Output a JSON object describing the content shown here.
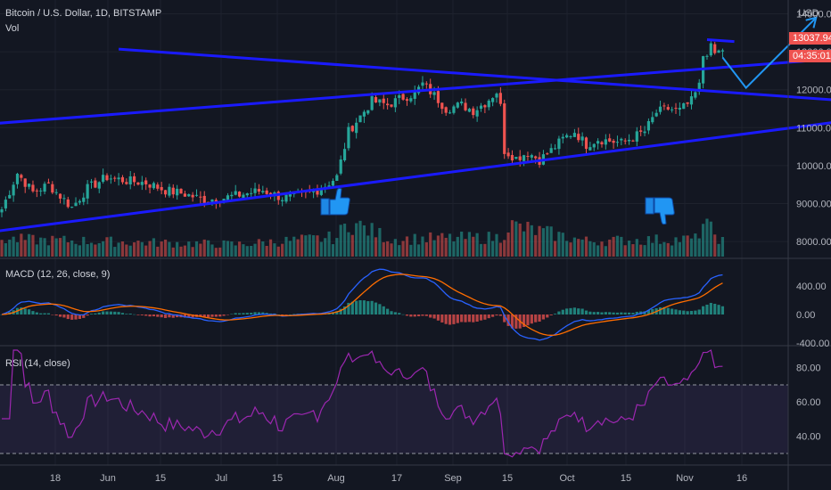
{
  "header": {
    "symbol": "Bitcoin / U.S. Dollar, 1D, BITSTAMP",
    "volume": "Vol",
    "macd": "MACD (12, 26, close, 9)",
    "rsi": "RSI (14, close)",
    "currency": "USD"
  },
  "price_tags": {
    "last_price": "13037.94",
    "countdown": "04:35:01"
  },
  "colors": {
    "background": "#131722",
    "up": "#26a69a",
    "down": "#ef5350",
    "trendline": "#1a1aff",
    "projection": "#2196f3",
    "macd_line": "#2962ff",
    "signal_line": "#ff6d00",
    "rsi_line": "#9c27b0",
    "rsi_band": "#7e57c2"
  },
  "chart_data": {
    "type": "candlestick",
    "x_ticks": [
      "18",
      "Jun",
      "15",
      "Jul",
      "15",
      "Aug",
      "17",
      "Sep",
      "15",
      "Oct",
      "15",
      "Nov",
      "16"
    ],
    "price_axis": {
      "ticks": [
        "8000.00",
        "9000.00",
        "10000.00",
        "11000.00",
        "12000.00",
        "13000.00",
        "14000.00"
      ],
      "ylim": [
        7650,
        14200
      ]
    },
    "macd_axis": {
      "ticks": [
        "-400.00",
        "0.00",
        "400.00"
      ]
    },
    "rsi_axis": {
      "ticks": [
        "40.00",
        "60.00",
        "80.00"
      ],
      "band": [
        30,
        70
      ]
    },
    "close_anchors": [
      {
        "i": 0,
        "v": 8850
      },
      {
        "i": 4,
        "v": 9800
      },
      {
        "i": 8,
        "v": 9300
      },
      {
        "i": 12,
        "v": 9500
      },
      {
        "i": 18,
        "v": 8900
      },
      {
        "i": 22,
        "v": 9400
      },
      {
        "i": 27,
        "v": 9700
      },
      {
        "i": 32,
        "v": 9600
      },
      {
        "i": 37,
        "v": 9550
      },
      {
        "i": 42,
        "v": 9350
      },
      {
        "i": 47,
        "v": 9250
      },
      {
        "i": 52,
        "v": 9100
      },
      {
        "i": 57,
        "v": 9150
      },
      {
        "i": 62,
        "v": 9250
      },
      {
        "i": 67,
        "v": 9350
      },
      {
        "i": 72,
        "v": 9150
      },
      {
        "i": 77,
        "v": 9200
      },
      {
        "i": 82,
        "v": 9400
      },
      {
        "i": 86,
        "v": 9700
      },
      {
        "i": 89,
        "v": 10900
      },
      {
        "i": 92,
        "v": 11300
      },
      {
        "i": 95,
        "v": 11700
      },
      {
        "i": 99,
        "v": 11600
      },
      {
        "i": 103,
        "v": 11800
      },
      {
        "i": 106,
        "v": 11900
      },
      {
        "i": 108,
        "v": 12150
      },
      {
        "i": 111,
        "v": 11850
      },
      {
        "i": 114,
        "v": 11500
      },
      {
        "i": 118,
        "v": 11600
      },
      {
        "i": 121,
        "v": 11450
      },
      {
        "i": 124,
        "v": 11650
      },
      {
        "i": 127,
        "v": 11950
      },
      {
        "i": 128,
        "v": 11550
      },
      {
        "i": 129,
        "v": 10400
      },
      {
        "i": 132,
        "v": 10200
      },
      {
        "i": 135,
        "v": 10350
      },
      {
        "i": 138,
        "v": 10150
      },
      {
        "i": 141,
        "v": 10400
      },
      {
        "i": 144,
        "v": 10700
      },
      {
        "i": 147,
        "v": 10900
      },
      {
        "i": 150,
        "v": 10550
      },
      {
        "i": 153,
        "v": 10700
      },
      {
        "i": 156,
        "v": 10650
      },
      {
        "i": 159,
        "v": 10600
      },
      {
        "i": 162,
        "v": 10750
      },
      {
        "i": 165,
        "v": 10900
      },
      {
        "i": 168,
        "v": 11400
      },
      {
        "i": 171,
        "v": 11500
      },
      {
        "i": 174,
        "v": 11450
      },
      {
        "i": 177,
        "v": 11700
      },
      {
        "i": 179,
        "v": 12100
      },
      {
        "i": 180,
        "v": 12900
      },
      {
        "i": 182,
        "v": 13100
      },
      {
        "i": 183,
        "v": 12950
      },
      {
        "i": 185,
        "v": 13037.94
      }
    ],
    "volume_anchors": [
      {
        "i": 0,
        "v": 0.5
      },
      {
        "i": 20,
        "v": 0.45
      },
      {
        "i": 40,
        "v": 0.4
      },
      {
        "i": 60,
        "v": 0.35
      },
      {
        "i": 86,
        "v": 0.55
      },
      {
        "i": 89,
        "v": 1.0
      },
      {
        "i": 100,
        "v": 0.5
      },
      {
        "i": 128,
        "v": 0.55
      },
      {
        "i": 130,
        "v": 0.9
      },
      {
        "i": 150,
        "v": 0.45
      },
      {
        "i": 178,
        "v": 0.5
      },
      {
        "i": 180,
        "v": 0.95
      },
      {
        "i": 185,
        "v": 0.45
      }
    ],
    "projection": [
      {
        "i": 185,
        "v": 12850
      },
      {
        "i": 191,
        "v": 12050
      },
      {
        "i": 209,
        "v": 13900
      }
    ],
    "trendlines": [
      {
        "from": {
          "i": -3,
          "v": 8250
        },
        "to": {
          "i": 218,
          "v": 11200
        }
      },
      {
        "from": {
          "i": -3,
          "v": 11100
        },
        "to": {
          "i": 218,
          "v": 12850
        }
      },
      {
        "from": {
          "i": 30,
          "v": 13070
        },
        "to": {
          "i": 218,
          "v": 11700
        }
      },
      {
        "from": {
          "i": 181,
          "v": 13320
        },
        "to": {
          "i": 188,
          "v": 13270
        }
      }
    ]
  }
}
